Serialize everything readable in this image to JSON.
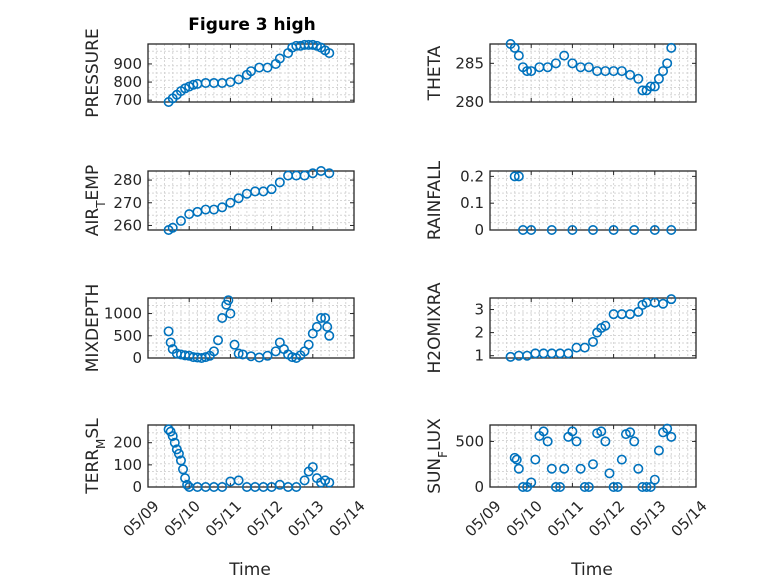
{
  "figure_title": "Figure 3 high",
  "marker_color": "#0072BD",
  "chart_data": [
    {
      "type": "scatter",
      "ylabel": "PRESSURE",
      "x_ticks": [
        "05/09",
        "05/10",
        "05/11",
        "05/12",
        "05/13",
        "05/14"
      ],
      "xlim": [
        0,
        5
      ],
      "ylim": [
        690,
        1010
      ],
      "yticks": [
        700,
        800,
        900
      ],
      "ytick_labels": [
        "700",
        "800",
        "900"
      ],
      "x": [
        0.5,
        0.6,
        0.7,
        0.8,
        0.9,
        1.0,
        1.1,
        1.2,
        1.4,
        1.6,
        1.8,
        2.0,
        2.2,
        2.4,
        2.5,
        2.7,
        2.9,
        3.1,
        3.2,
        3.4,
        3.5,
        3.6,
        3.7,
        3.8,
        3.9,
        4.0,
        4.1,
        4.2,
        4.3,
        4.4
      ],
      "y": [
        690,
        710,
        730,
        750,
        765,
        775,
        785,
        790,
        795,
        795,
        795,
        800,
        815,
        840,
        860,
        880,
        880,
        900,
        930,
        960,
        990,
        1000,
        1000,
        1005,
        1005,
        1005,
        1000,
        990,
        975,
        960
      ]
    },
    {
      "type": "scatter",
      "ylabel": "THETA",
      "x_ticks": [
        "05/09",
        "05/10",
        "05/11",
        "05/12",
        "05/13",
        "05/14"
      ],
      "xlim": [
        0,
        5
      ],
      "ylim": [
        280,
        287.5
      ],
      "yticks": [
        280,
        285
      ],
      "ytick_labels": [
        "280",
        "285"
      ],
      "x": [
        0.5,
        0.6,
        0.7,
        0.8,
        0.9,
        1.0,
        1.2,
        1.4,
        1.6,
        1.8,
        2.0,
        2.2,
        2.4,
        2.6,
        2.8,
        3.0,
        3.2,
        3.4,
        3.6,
        3.7,
        3.8,
        3.9,
        4.0,
        4.1,
        4.2,
        4.3,
        4.4
      ],
      "y": [
        287.5,
        287,
        286,
        284.5,
        284,
        284,
        284.5,
        284.5,
        285,
        286,
        285,
        284.5,
        284.5,
        284,
        284,
        284,
        284,
        283.5,
        283,
        281.5,
        281.5,
        282,
        282,
        283,
        284,
        285,
        287
      ]
    },
    {
      "type": "scatter",
      "ylabel": "AIR_TEMP",
      "x_ticks": [
        "05/09",
        "05/10",
        "05/11",
        "05/12",
        "05/13",
        "05/14"
      ],
      "xlim": [
        0,
        5
      ],
      "ylim": [
        258,
        284
      ],
      "yticks": [
        260,
        270,
        280
      ],
      "ytick_labels": [
        "260",
        "270",
        "280"
      ],
      "x": [
        0.5,
        0.6,
        0.8,
        1.0,
        1.2,
        1.4,
        1.6,
        1.8,
        2.0,
        2.2,
        2.4,
        2.6,
        2.8,
        3.0,
        3.2,
        3.4,
        3.6,
        3.8,
        4.0,
        4.2,
        4.4
      ],
      "y": [
        258,
        259,
        262,
        265,
        266,
        267,
        267,
        268,
        270,
        272,
        274,
        275,
        275,
        276,
        279,
        282,
        282,
        282,
        283,
        284,
        283
      ]
    },
    {
      "type": "scatter",
      "ylabel": "RAINFALL",
      "x_ticks": [
        "05/09",
        "05/10",
        "05/11",
        "05/12",
        "05/13",
        "05/14"
      ],
      "xlim": [
        0,
        5
      ],
      "ylim": [
        0,
        0.22
      ],
      "yticks": [
        0,
        0.1,
        0.2
      ],
      "ytick_labels": [
        "0",
        "0.1",
        "0.2"
      ],
      "x": [
        0.6,
        0.7,
        0.8,
        1.0,
        1.5,
        2.0,
        2.5,
        3.0,
        3.5,
        4.0,
        4.4
      ],
      "y": [
        0.2,
        0.2,
        0,
        0,
        0,
        0,
        0,
        0,
        0,
        0,
        0
      ]
    },
    {
      "type": "scatter",
      "ylabel": "MIXDEPTH",
      "x_ticks": [
        "05/09",
        "05/10",
        "05/11",
        "05/12",
        "05/13",
        "05/14"
      ],
      "xlim": [
        0,
        5
      ],
      "ylim": [
        0,
        1350
      ],
      "yticks": [
        0,
        500,
        1000
      ],
      "ytick_labels": [
        "0",
        "500",
        "1000"
      ],
      "x": [
        0.5,
        0.55,
        0.6,
        0.7,
        0.8,
        0.9,
        1.0,
        1.1,
        1.2,
        1.3,
        1.4,
        1.5,
        1.6,
        1.7,
        1.8,
        1.9,
        1.95,
        2.0,
        2.1,
        2.2,
        2.3,
        2.5,
        2.7,
        2.9,
        3.1,
        3.2,
        3.3,
        3.4,
        3.5,
        3.6,
        3.7,
        3.8,
        3.9,
        4.0,
        4.1,
        4.2,
        4.3,
        4.35,
        4.4
      ],
      "y": [
        600,
        350,
        200,
        100,
        80,
        60,
        50,
        20,
        10,
        0,
        20,
        50,
        150,
        400,
        900,
        1200,
        1300,
        1000,
        300,
        100,
        80,
        40,
        10,
        50,
        150,
        350,
        200,
        80,
        20,
        0,
        60,
        150,
        300,
        550,
        700,
        900,
        900,
        700,
        500
      ]
    },
    {
      "type": "scatter",
      "ylabel": "H2OMIXRA",
      "x_ticks": [
        "05/09",
        "05/10",
        "05/11",
        "05/12",
        "05/13",
        "05/14"
      ],
      "xlim": [
        0,
        5
      ],
      "ylim": [
        0.9,
        3.5
      ],
      "yticks": [
        1,
        2,
        3
      ],
      "ytick_labels": [
        "1",
        "2",
        "3"
      ],
      "x": [
        0.5,
        0.7,
        0.9,
        1.1,
        1.3,
        1.5,
        1.7,
        1.9,
        2.1,
        2.3,
        2.5,
        2.6,
        2.7,
        2.8,
        3.0,
        3.2,
        3.4,
        3.6,
        3.7,
        3.8,
        4.0,
        4.2,
        4.4
      ],
      "y": [
        0.95,
        1.0,
        1.0,
        1.1,
        1.1,
        1.1,
        1.1,
        1.1,
        1.35,
        1.35,
        1.6,
        2.0,
        2.2,
        2.3,
        2.8,
        2.8,
        2.8,
        2.9,
        3.2,
        3.3,
        3.3,
        3.25,
        3.45
      ]
    },
    {
      "type": "scatter",
      "ylabel": "TERR_MSL",
      "x_ticks": [
        "05/09",
        "05/10",
        "05/11",
        "05/12",
        "05/13",
        "05/14"
      ],
      "xlim": [
        0,
        5
      ],
      "ylim": [
        0,
        280
      ],
      "yticks": [
        0,
        100,
        200
      ],
      "ytick_labels": [
        "0",
        "100",
        "200"
      ],
      "x": [
        0.5,
        0.55,
        0.6,
        0.65,
        0.7,
        0.75,
        0.8,
        0.85,
        0.9,
        0.95,
        1.0,
        1.2,
        1.4,
        1.6,
        1.8,
        2.0,
        2.2,
        2.4,
        2.6,
        2.8,
        3.0,
        3.2,
        3.4,
        3.6,
        3.8,
        3.9,
        4.0,
        4.1,
        4.2,
        4.3,
        4.4
      ],
      "y": [
        260,
        250,
        230,
        200,
        170,
        150,
        120,
        80,
        40,
        10,
        0,
        0,
        0,
        0,
        0,
        25,
        30,
        0,
        0,
        0,
        0,
        10,
        0,
        0,
        30,
        70,
        90,
        40,
        20,
        30,
        20
      ]
    },
    {
      "type": "scatter",
      "ylabel": "SUN_FLUX",
      "x_ticks": [
        "05/09",
        "05/10",
        "05/11",
        "05/12",
        "05/13",
        "05/14"
      ],
      "xlim": [
        0,
        5
      ],
      "ylim": [
        0,
        680
      ],
      "yticks": [
        0,
        500
      ],
      "ytick_labels": [
        "0",
        "500"
      ],
      "x": [
        0.6,
        0.65,
        0.7,
        0.8,
        0.9,
        1.0,
        1.1,
        1.2,
        1.3,
        1.4,
        1.5,
        1.6,
        1.7,
        1.8,
        1.9,
        2.0,
        2.1,
        2.2,
        2.3,
        2.4,
        2.5,
        2.6,
        2.7,
        2.8,
        2.9,
        3.0,
        3.1,
        3.2,
        3.3,
        3.4,
        3.5,
        3.6,
        3.7,
        3.8,
        3.9,
        4.0,
        4.1,
        4.2,
        4.3,
        4.4
      ],
      "y": [
        320,
        300,
        200,
        0,
        0,
        50,
        300,
        560,
        610,
        500,
        200,
        0,
        0,
        200,
        550,
        610,
        500,
        200,
        0,
        0,
        250,
        590,
        610,
        500,
        150,
        0,
        0,
        300,
        580,
        600,
        500,
        200,
        0,
        0,
        0,
        80,
        400,
        600,
        640,
        550
      ]
    }
  ],
  "y_label_display": {
    "AIR_TEMP": [
      "AIR",
      "T",
      "EMP"
    ],
    "TERR_MSL": [
      "TERR",
      "M",
      "SL"
    ],
    "SUN_FLUX": [
      "SUN",
      "F",
      "LUX"
    ]
  },
  "xlabel": "Time"
}
